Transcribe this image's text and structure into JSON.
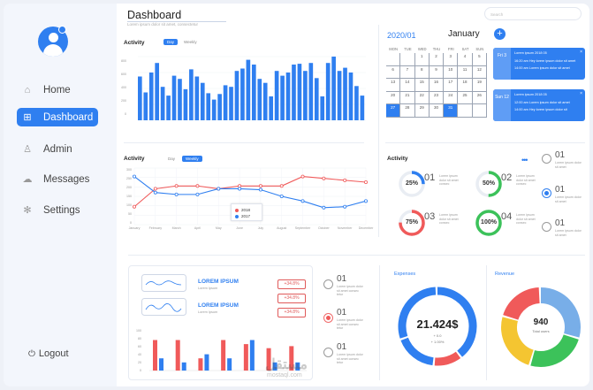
{
  "sidebar": {
    "items": [
      {
        "label": "Home",
        "icon": "home-icon",
        "glyph": "⌂"
      },
      {
        "label": "Dashboard",
        "icon": "grid-icon",
        "glyph": "⊞"
      },
      {
        "label": "Admin",
        "icon": "user-icon",
        "glyph": "♙"
      },
      {
        "label": "Messages",
        "icon": "chat-icon",
        "glyph": "☁"
      },
      {
        "label": "Settings",
        "icon": "gear-icon",
        "glyph": "✻"
      }
    ],
    "active_index": 1,
    "logout": {
      "label": "Logout",
      "glyph": "⏻"
    }
  },
  "header": {
    "title": "Dashboard",
    "subtitle": "Lorem ipsum dolor sit amet, consectetur",
    "search_placeholder": "Search"
  },
  "colors": {
    "accent": "#2f7ff0",
    "red": "#f05a5a",
    "green": "#3cc25a",
    "yellow": "#f4c531",
    "lightblue": "#78aee8"
  },
  "activity_bars": {
    "title": "Activity",
    "tabs": [
      "Day",
      "Weekly"
    ],
    "active_tab": "Day",
    "y_ticks": [
      "800",
      "600",
      "400",
      "200",
      "0"
    ]
  },
  "activity_line": {
    "title": "Activity",
    "tabs": [
      "Day",
      "Weekly"
    ],
    "active_tab": "Weekly",
    "y_ticks": [
      "300",
      "250",
      "200",
      "150",
      "100",
      "50",
      "0"
    ],
    "legend": [
      "2018",
      "2017"
    ]
  },
  "calendar": {
    "year": "2020/01",
    "month": "January",
    "weekdays": [
      "MON",
      "TUE",
      "WED",
      "THU",
      "FRI",
      "SAT",
      "SUN"
    ],
    "days": [
      "",
      "",
      "1",
      "2",
      "3",
      "4",
      "5",
      "6",
      "7",
      "8",
      "9",
      "10",
      "11",
      "12",
      "13",
      "14",
      "15",
      "16",
      "17",
      "18",
      "19",
      "20",
      "21",
      "22",
      "23",
      "24",
      "25",
      "26",
      "27",
      "28",
      "29",
      "30",
      "31",
      "",
      ""
    ],
    "selected": [
      "27",
      "31"
    ],
    "events": [
      {
        "day": "Fri\n3",
        "lines": [
          "Lorem ipsum 2018 05",
          "16:20 am   Hey lorem ipsum dolor sit amet",
          "14:00 am   Lorem ipsum dolor sit amet"
        ]
      },
      {
        "day": "Sun\n12",
        "lines": [
          "Lorem ipsum 2018 05",
          "12:00 am   Lorem ipsum dolor sit amet",
          "14:00 am   Hey lorem ipsum dolor sit"
        ]
      }
    ]
  },
  "activity_donuts": {
    "title": "Activity",
    "items": [
      {
        "pct": "25%",
        "value": 25,
        "color": "#2f7ff0",
        "num": "01",
        "text": "Lorem ipsum dolor sit amet consec"
      },
      {
        "pct": "50%",
        "value": 50,
        "color": "#3cc25a",
        "num": "02",
        "text": "Lorem ipsum dolor sit amet consec"
      },
      {
        "pct": "75%",
        "value": 75,
        "color": "#f05a5a",
        "num": "03",
        "text": "Lorem ipsum dolor sit amet consec"
      },
      {
        "pct": "100%",
        "value": 100,
        "color": "#3cc25a",
        "num": "04",
        "text": "Lorem ipsum dolor sit amet consec"
      }
    ],
    "side_items": [
      {
        "num": "01",
        "text": "Lorem ipsum dolor sit amet"
      },
      {
        "num": "01",
        "text": "Lorem ipsum dolor sit amet"
      },
      {
        "num": "01",
        "text": "Lorem ipsum dolor sit amet"
      }
    ]
  },
  "lorem_card": {
    "rows": [
      {
        "title": "LOREM IPSUM",
        "sub": "Lorem Ipsum",
        "change": "+34.8%"
      },
      {
        "title": "LOREM IPSUM",
        "sub": "Lorem Ipsum",
        "change": "+34.8%"
      },
      {
        "change": "+34.8%"
      }
    ],
    "y_ticks": [
      "100",
      "80",
      "60",
      "40",
      "20",
      "0"
    ]
  },
  "middle_list": [
    {
      "num": "01",
      "text": "Lorem ipsum dolor sit amet consec tetur"
    },
    {
      "num": "01",
      "text": "Lorem ipsum dolor sit amet consec tetur"
    },
    {
      "num": "01",
      "text": "Lorem ipsum dolor sit amet consec tetur"
    }
  ],
  "expenses": {
    "title": "Expenses",
    "value": "21.424$",
    "lines": [
      "+ 0.0",
      "+ 1.00%"
    ]
  },
  "revenue": {
    "title": "Revenue",
    "value": "940",
    "sub": "Total users"
  },
  "watermark": {
    "arabic": "مستقل",
    "latin": "mostaql.com"
  },
  "chart_data": [
    {
      "type": "bar",
      "title": "Activity",
      "ylim": [
        0,
        800
      ],
      "values": [
        550,
        350,
        600,
        720,
        420,
        310,
        560,
        520,
        390,
        640,
        550,
        470,
        340,
        260,
        330,
        440,
        420,
        620,
        650,
        760,
        700,
        520,
        470,
        300,
        620,
        560,
        600,
        700,
        710,
        620,
        720,
        530,
        300,
        720,
        800,
        620,
        660,
        600,
        430,
        310
      ]
    },
    {
      "type": "line",
      "title": "Activity",
      "categories": [
        "January",
        "February",
        "March",
        "April",
        "May",
        "June",
        "July",
        "August",
        "September",
        "October",
        "November",
        "December"
      ],
      "ylim": [
        0,
        300
      ],
      "series": [
        {
          "name": "2018",
          "color": "#f05a5a",
          "values": [
            95,
            190,
            205,
            205,
            190,
            205,
            205,
            205,
            255,
            245,
            235,
            225
          ]
        },
        {
          "name": "2017",
          "color": "#2f7ff0",
          "values": [
            255,
            170,
            160,
            160,
            190,
            190,
            185,
            150,
            125,
            90,
            95,
            125
          ]
        }
      ]
    },
    {
      "type": "bar",
      "title": "",
      "ylim": [
        0,
        100
      ],
      "series": [
        {
          "name": "red",
          "color": "#f05a5a",
          "values": [
            75,
            75,
            30,
            75,
            65,
            55,
            60
          ]
        },
        {
          "name": "blue",
          "color": "#2f7ff0",
          "values": [
            30,
            20,
            40,
            30,
            75,
            20,
            20
          ]
        }
      ]
    },
    {
      "type": "pie",
      "title": "Expenses",
      "values": [
        40,
        12,
        18,
        30
      ],
      "colors": [
        "#2f7ff0",
        "#f05a5a",
        "#2f7ff0",
        "#2f7ff0"
      ]
    },
    {
      "type": "pie",
      "title": "Revenue",
      "values": [
        30,
        25,
        25,
        20
      ],
      "colors": [
        "#78aee8",
        "#3cc25a",
        "#f4c531",
        "#f05a5a"
      ]
    }
  ]
}
